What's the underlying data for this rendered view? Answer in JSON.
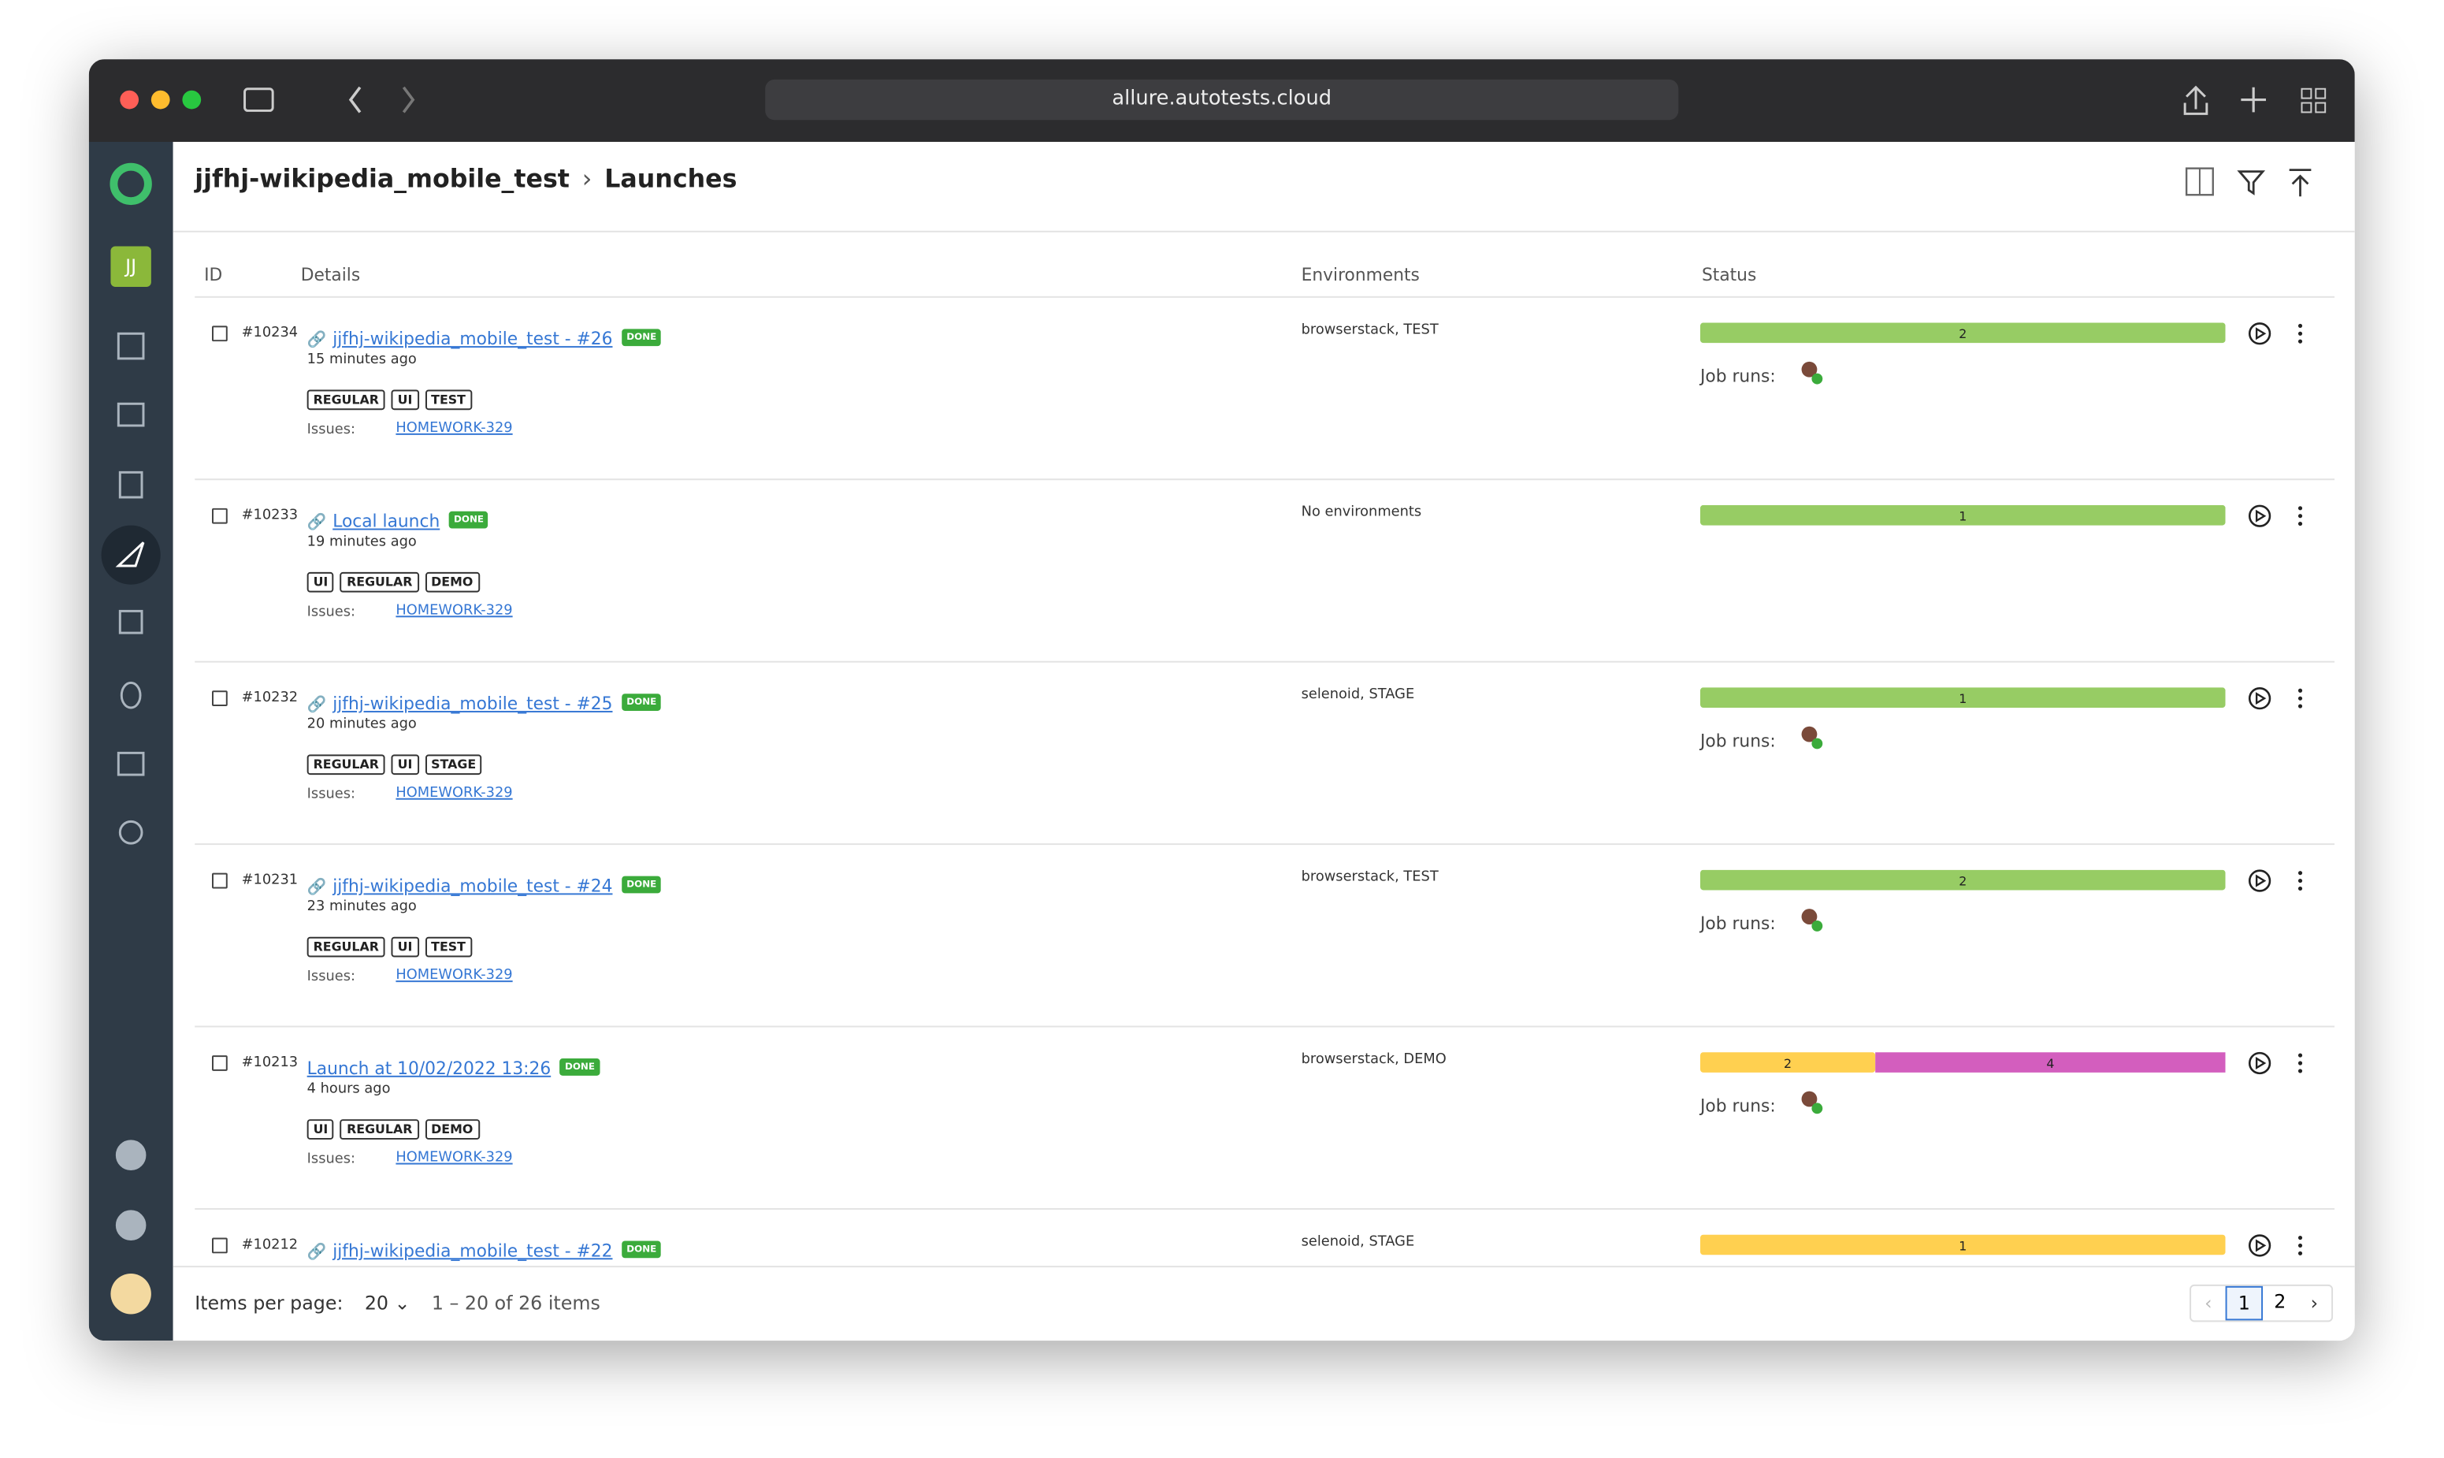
{
  "browser": {
    "url": "allure.autotests.cloud"
  },
  "sidebar": {
    "avatar": "JJ"
  },
  "header": {
    "project": "jjfhj-wikipedia_mobile_test",
    "title": "Launches"
  },
  "table": {
    "columns": [
      "ID",
      "Details",
      "Environments",
      "Status"
    ],
    "status_label": "DONE",
    "issues_label": "Issues:",
    "rows": [
      {
        "id": "#10234",
        "name": "jjfhj-wikipedia_mobile_test - #26",
        "linked": true,
        "time": "15 minutes ago",
        "tags": [
          "REGULAR",
          "UI",
          "TEST"
        ],
        "issue": "HOMEWORK-329",
        "environments": "browserstack, TEST",
        "segments": [
          {
            "value": 2,
            "color": "#97cc64"
          }
        ],
        "job_runs": "Job runs:"
      },
      {
        "id": "#10233",
        "name": "Local launch",
        "linked": true,
        "time": "19 minutes ago",
        "tags": [
          "UI",
          "REGULAR",
          "DEMO"
        ],
        "issue": "HOMEWORK-329",
        "environments": "No environments",
        "segments": [
          {
            "value": 1,
            "color": "#97cc64"
          }
        ]
      },
      {
        "id": "#10232",
        "name": "jjfhj-wikipedia_mobile_test - #25",
        "linked": true,
        "time": "20 minutes ago",
        "tags": [
          "REGULAR",
          "UI",
          "STAGE"
        ],
        "issue": "HOMEWORK-329",
        "environments": "selenoid, STAGE",
        "segments": [
          {
            "value": 1,
            "color": "#97cc64"
          }
        ],
        "job_runs": "Job runs:"
      },
      {
        "id": "#10231",
        "name": "jjfhj-wikipedia_mobile_test - #24",
        "linked": true,
        "time": "23 minutes ago",
        "tags": [
          "REGULAR",
          "UI",
          "TEST"
        ],
        "issue": "HOMEWORK-329",
        "environments": "browserstack, TEST",
        "segments": [
          {
            "value": 2,
            "color": "#97cc64"
          }
        ],
        "job_runs": "Job runs:"
      },
      {
        "id": "#10213",
        "name": "Launch at 10/02/2022 13:26",
        "linked": false,
        "time": "4 hours ago",
        "tags": [
          "UI",
          "REGULAR",
          "DEMO"
        ],
        "issue": "HOMEWORK-329",
        "environments": "browserstack, DEMO",
        "segments": [
          {
            "value": 2,
            "color": "#ffd050"
          },
          {
            "value": 4,
            "color": "#d35ebe"
          }
        ],
        "job_runs": "Job runs:"
      },
      {
        "id": "#10212",
        "name": "jjfhj-wikipedia_mobile_test - #22",
        "linked": true,
        "environments": "selenoid, STAGE",
        "segments": [
          {
            "value": 1,
            "color": "#ffd050"
          }
        ]
      }
    ]
  },
  "footer": {
    "per_page_label": "Items per page:",
    "per_page": "20",
    "range": "1 – 20 of 26 items",
    "pages": [
      "1",
      "2"
    ]
  }
}
